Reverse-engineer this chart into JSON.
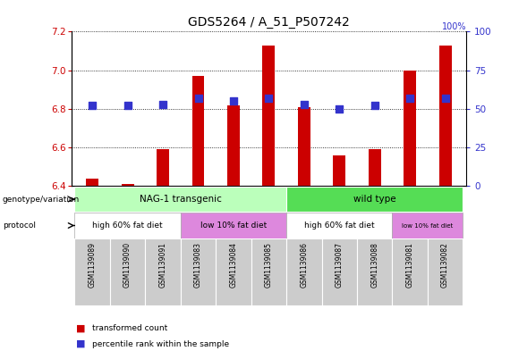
{
  "title": "GDS5264 / A_51_P507242",
  "samples": [
    "GSM1139089",
    "GSM1139090",
    "GSM1139091",
    "GSM1139083",
    "GSM1139084",
    "GSM1139085",
    "GSM1139086",
    "GSM1139087",
    "GSM1139088",
    "GSM1139081",
    "GSM1139082"
  ],
  "transformed_count": [
    6.44,
    6.41,
    6.59,
    6.97,
    6.82,
    7.13,
    6.81,
    6.56,
    6.59,
    7.0,
    7.13
  ],
  "percentile_rank": [
    52,
    52,
    53,
    57,
    55,
    57,
    53,
    50,
    52,
    57,
    57
  ],
  "ylim_left": [
    6.4,
    7.2
  ],
  "ylim_right": [
    0,
    100
  ],
  "yticks_left": [
    6.4,
    6.6,
    6.8,
    7.0,
    7.2
  ],
  "yticks_right": [
    0,
    25,
    50,
    75,
    100
  ],
  "bar_color": "#cc0000",
  "dot_color": "#3333cc",
  "genotype_groups": [
    {
      "label": "NAG-1 transgenic",
      "start": 0,
      "end": 5,
      "color": "#bbffbb"
    },
    {
      "label": "wild type",
      "start": 6,
      "end": 10,
      "color": "#55dd55"
    }
  ],
  "protocol_groups": [
    {
      "label": "high 60% fat diet",
      "start": 0,
      "end": 2,
      "color": "#ffffff"
    },
    {
      "label": "low 10% fat diet",
      "start": 3,
      "end": 5,
      "color": "#dd88dd"
    },
    {
      "label": "high 60% fat diet",
      "start": 6,
      "end": 8,
      "color": "#ffffff"
    },
    {
      "label": "low 10% fat diet",
      "start": 9,
      "end": 10,
      "color": "#dd88dd"
    }
  ],
  "bg_color": "#ffffff",
  "tick_label_color_left": "#cc0000",
  "tick_label_color_right": "#3333cc",
  "bar_width": 0.35,
  "dot_size": 30,
  "xlabel_area_color": "#cccccc",
  "left_label_color": "#000000"
}
